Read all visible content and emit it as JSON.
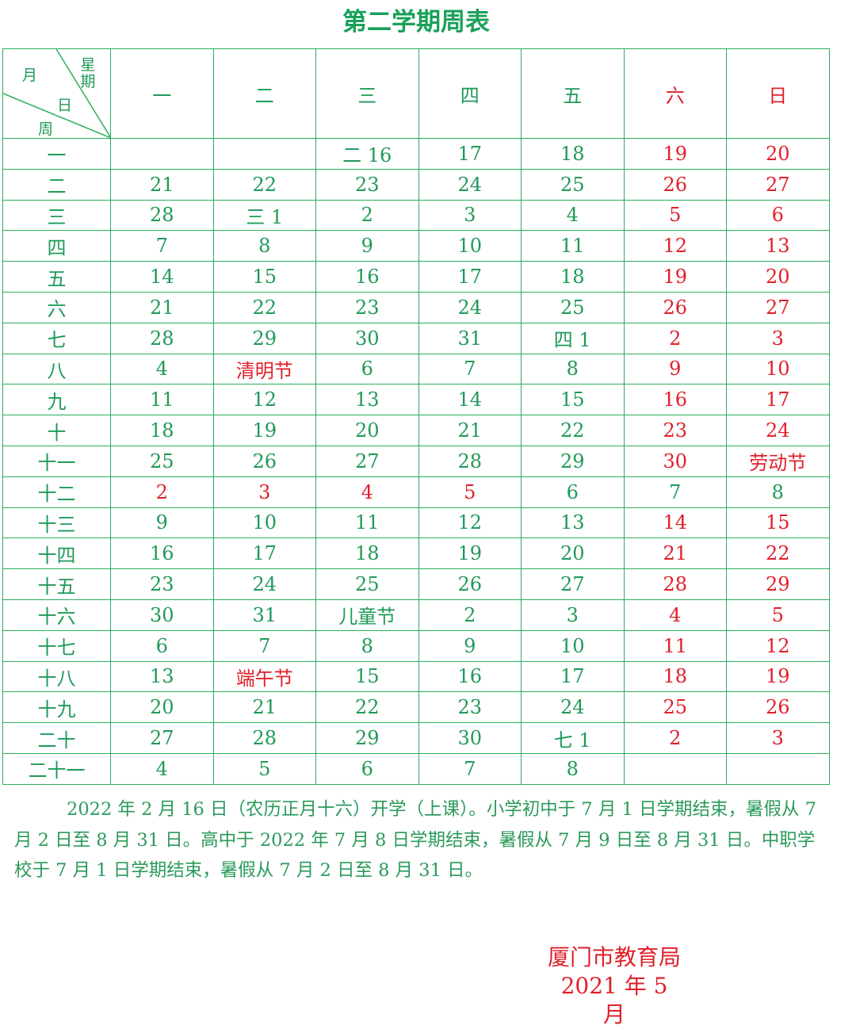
{
  "title": "第二学期周表",
  "corner": {
    "month": "月",
    "weekday": "星期",
    "day": "日",
    "week": "周"
  },
  "colors": {
    "green": "#1f9a58",
    "red": "#e0202a"
  },
  "weekdays": [
    {
      "label": "一",
      "red": false
    },
    {
      "label": "二",
      "red": false
    },
    {
      "label": "三",
      "red": false
    },
    {
      "label": "四",
      "red": false
    },
    {
      "label": "五",
      "red": false
    },
    {
      "label": "六",
      "red": true
    },
    {
      "label": "日",
      "red": true
    }
  ],
  "rows": [
    {
      "week": "一",
      "cells": [
        "",
        "",
        "二 16",
        "17",
        "18",
        "19",
        "20"
      ],
      "red": [
        5,
        6
      ]
    },
    {
      "week": "二",
      "cells": [
        "21",
        "22",
        "23",
        "24",
        "25",
        "26",
        "27"
      ],
      "red": [
        5,
        6
      ]
    },
    {
      "week": "三",
      "cells": [
        "28",
        "三 1",
        "2",
        "3",
        "4",
        "5",
        "6"
      ],
      "red": [
        5,
        6
      ]
    },
    {
      "week": "四",
      "cells": [
        "7",
        "8",
        "9",
        "10",
        "11",
        "12",
        "13"
      ],
      "red": [
        5,
        6
      ]
    },
    {
      "week": "五",
      "cells": [
        "14",
        "15",
        "16",
        "17",
        "18",
        "19",
        "20"
      ],
      "red": [
        5,
        6
      ]
    },
    {
      "week": "六",
      "cells": [
        "21",
        "22",
        "23",
        "24",
        "25",
        "26",
        "27"
      ],
      "red": [
        5,
        6
      ]
    },
    {
      "week": "七",
      "cells": [
        "28",
        "29",
        "30",
        "31",
        "四 1",
        "2",
        "3"
      ],
      "red": [
        5,
        6
      ]
    },
    {
      "week": "八",
      "cells": [
        "4",
        "清明节",
        "6",
        "7",
        "8",
        "9",
        "10"
      ],
      "red": [
        1,
        5,
        6
      ]
    },
    {
      "week": "九",
      "cells": [
        "11",
        "12",
        "13",
        "14",
        "15",
        "16",
        "17"
      ],
      "red": [
        5,
        6
      ]
    },
    {
      "week": "十",
      "cells": [
        "18",
        "19",
        "20",
        "21",
        "22",
        "23",
        "24"
      ],
      "red": [
        5,
        6
      ]
    },
    {
      "week": "十一",
      "cells": [
        "25",
        "26",
        "27",
        "28",
        "29",
        "30",
        "劳动节"
      ],
      "red": [
        5,
        6
      ]
    },
    {
      "week": "十二",
      "cells": [
        "2",
        "3",
        "4",
        "5",
        "6",
        "7",
        "8"
      ],
      "red": [
        0,
        1,
        2,
        3
      ]
    },
    {
      "week": "十三",
      "cells": [
        "9",
        "10",
        "11",
        "12",
        "13",
        "14",
        "15"
      ],
      "red": [
        5,
        6
      ]
    },
    {
      "week": "十四",
      "cells": [
        "16",
        "17",
        "18",
        "19",
        "20",
        "21",
        "22"
      ],
      "red": [
        5,
        6
      ]
    },
    {
      "week": "十五",
      "cells": [
        "23",
        "24",
        "25",
        "26",
        "27",
        "28",
        "29"
      ],
      "red": [
        5,
        6
      ]
    },
    {
      "week": "十六",
      "cells": [
        "30",
        "31",
        "儿童节",
        "2",
        "3",
        "4",
        "5"
      ],
      "red": [
        5,
        6
      ]
    },
    {
      "week": "十七",
      "cells": [
        "6",
        "7",
        "8",
        "9",
        "10",
        "11",
        "12"
      ],
      "red": [
        5,
        6
      ]
    },
    {
      "week": "十八",
      "cells": [
        "13",
        "端午节",
        "15",
        "16",
        "17",
        "18",
        "19"
      ],
      "red": [
        1,
        5,
        6
      ]
    },
    {
      "week": "十九",
      "cells": [
        "20",
        "21",
        "22",
        "23",
        "24",
        "25",
        "26"
      ],
      "red": [
        5,
        6
      ]
    },
    {
      "week": "二十",
      "cells": [
        "27",
        "28",
        "29",
        "30",
        "七 1",
        "2",
        "3"
      ],
      "red": [
        5,
        6
      ]
    },
    {
      "week": "二十一",
      "cells": [
        "4",
        "5",
        "6",
        "7",
        "8",
        "",
        ""
      ],
      "red": []
    }
  ],
  "note": "2022 年 2 月 16 日（农历正月十六）开学（上课）。小学初中于 7 月 1 日学期结束，暑假从 7 月 2 日至 8 月 31 日。高中于 2022 年 7 月 8 日学期结束，暑假从 7 月 9 日至 8 月 31 日。中职学校于 7 月 1 日学期结束，暑假从 7 月 2 日至 8 月 31 日。",
  "signature": {
    "issuer": "厦门市教育局",
    "date": "2021 年 5 月"
  }
}
